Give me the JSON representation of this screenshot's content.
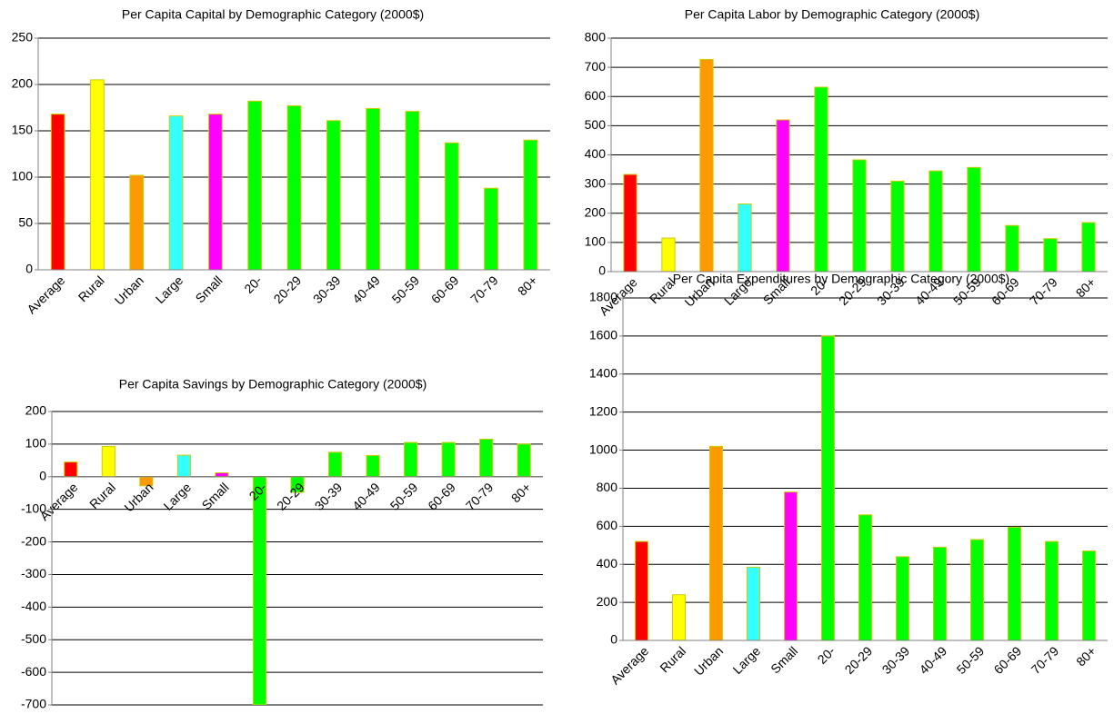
{
  "chart_data": [
    {
      "type": "bar",
      "title": "Per Capita Capital by Demographic Category (2000$)",
      "categories": [
        "Average",
        "Rural",
        "Urban",
        "Large",
        "Small",
        "20-",
        "20-29",
        "30-39",
        "40-49",
        "50-59",
        "60-69",
        "70-79",
        "80+"
      ],
      "values": [
        168,
        205,
        102,
        166,
        168,
        182,
        177,
        161,
        174,
        171,
        137,
        88,
        140
      ],
      "colors": [
        "#ff0000",
        "#ffff00",
        "#ff9900",
        "#33ffff",
        "#ff00ff",
        "#00ff00",
        "#00ff00",
        "#00ff00",
        "#00ff00",
        "#00ff00",
        "#00ff00",
        "#00ff00",
        "#00ff00"
      ],
      "ylim": [
        0,
        250
      ],
      "yticks": [
        0,
        50,
        100,
        150,
        200,
        250
      ],
      "grid": true
    },
    {
      "type": "bar",
      "title": "Per Capita Labor by Demographic Category (2000$)",
      "categories": [
        "Average",
        "Rural",
        "Urban",
        "Large",
        "Small",
        "20-",
        "20-29",
        "30-39",
        "40-49",
        "50-59",
        "60-69",
        "70-79",
        "80+"
      ],
      "values": [
        333,
        115,
        727,
        232,
        520,
        632,
        383,
        310,
        345,
        357,
        158,
        113,
        168
      ],
      "colors": [
        "#ff0000",
        "#ffff00",
        "#ff9900",
        "#33ffff",
        "#ff00ff",
        "#00ff00",
        "#00ff00",
        "#00ff00",
        "#00ff00",
        "#00ff00",
        "#00ff00",
        "#00ff00",
        "#00ff00"
      ],
      "ylim": [
        0,
        800
      ],
      "yticks": [
        0,
        100,
        200,
        300,
        400,
        500,
        600,
        700,
        800
      ],
      "grid": true
    },
    {
      "type": "bar",
      "title": "Per Capita Savings by Demographic Category (2000$)",
      "categories": [
        "Average",
        "Rural",
        "Urban",
        "Large",
        "Small",
        "20-",
        "20-29",
        "30-39",
        "40-49",
        "50-59",
        "60-69",
        "70-79",
        "80+"
      ],
      "values": [
        45,
        93,
        -28,
        66,
        12,
        -700,
        -48,
        75,
        65,
        105,
        105,
        115,
        100
      ],
      "colors": [
        "#ff0000",
        "#ffff00",
        "#ff9900",
        "#33ffff",
        "#ff00ff",
        "#00ff00",
        "#00ff00",
        "#00ff00",
        "#00ff00",
        "#00ff00",
        "#00ff00",
        "#00ff00",
        "#00ff00"
      ],
      "ylim": [
        -700,
        200
      ],
      "yticks": [
        -700,
        -600,
        -500,
        -400,
        -300,
        -200,
        -100,
        0,
        100,
        200
      ],
      "grid": true
    },
    {
      "type": "bar",
      "title": "Per Capita Expenditures by Demographic Category (2000$)",
      "categories": [
        "Average",
        "Rural",
        "Urban",
        "Large",
        "Small",
        "20-",
        "20-29",
        "30-39",
        "40-49",
        "50-59",
        "60-69",
        "70-79",
        "80+"
      ],
      "values": [
        520,
        240,
        1020,
        385,
        780,
        1600,
        660,
        440,
        490,
        530,
        595,
        520,
        470
      ],
      "colors": [
        "#ff0000",
        "#ffff00",
        "#ff9900",
        "#33ffff",
        "#ff00ff",
        "#00ff00",
        "#00ff00",
        "#00ff00",
        "#00ff00",
        "#00ff00",
        "#00ff00",
        "#00ff00",
        "#00ff00"
      ],
      "ylim": [
        0,
        1800
      ],
      "yticks": [
        0,
        200,
        400,
        600,
        800,
        1000,
        1200,
        1400,
        1600,
        1800
      ],
      "grid": true
    }
  ]
}
